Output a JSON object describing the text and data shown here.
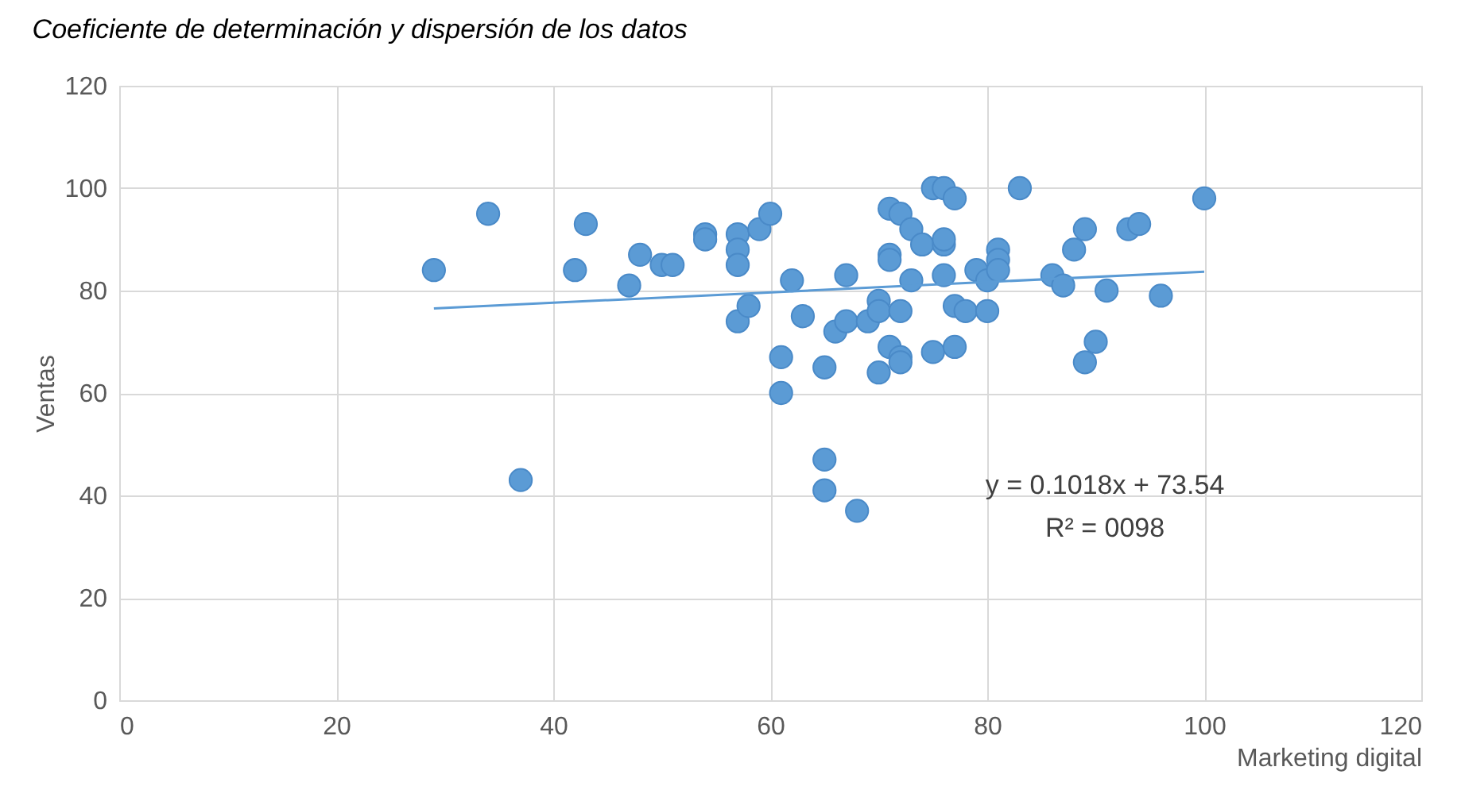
{
  "chart_data": {
    "type": "scatter",
    "title": "Coeficiente de determinación y dispersión de los datos",
    "xlabel": "Marketing digital",
    "ylabel": "Ventas",
    "xlim": [
      0,
      120
    ],
    "xticks": [
      0,
      20,
      40,
      60,
      80,
      100,
      120
    ],
    "ylim": [
      0,
      120
    ],
    "yticks": [
      0,
      20,
      40,
      60,
      80,
      100,
      120
    ],
    "grid": true,
    "annotations": [
      "y = 0.1018x + 73.54",
      "R² = 0098"
    ],
    "series": [
      {
        "marker": "circle",
        "color": "#5b9bd5",
        "x": [
          29,
          34,
          37,
          42,
          43,
          47,
          48,
          50,
          51,
          54,
          54,
          57,
          57,
          57,
          57,
          58,
          59,
          60,
          61,
          61,
          62,
          63,
          65,
          65,
          65,
          66,
          67,
          67,
          68,
          69,
          70,
          70,
          70,
          71,
          71,
          71,
          71,
          72,
          72,
          72,
          72,
          73,
          73,
          74,
          75,
          75,
          76,
          76,
          76,
          76,
          77,
          77,
          77,
          78,
          79,
          80,
          80,
          81,
          81,
          81,
          83,
          86,
          87,
          88,
          89,
          89,
          90,
          91,
          93,
          94,
          96,
          100
        ],
        "values": [
          84,
          95,
          43,
          84,
          93,
          81,
          87,
          85,
          85,
          91,
          90,
          91,
          88,
          85,
          74,
          77,
          92,
          95,
          67,
          60,
          82,
          75,
          47,
          41,
          65,
          72,
          74,
          83,
          37,
          74,
          78,
          76,
          64,
          96,
          87,
          86,
          69,
          95,
          76,
          67,
          66,
          92,
          82,
          89,
          100,
          68,
          100,
          89,
          90,
          83,
          98,
          77,
          69,
          76,
          84,
          82,
          76,
          88,
          86,
          84,
          100,
          83,
          81,
          88,
          92,
          66,
          70,
          80,
          92,
          93,
          79,
          98
        ]
      },
      {
        "type": "line",
        "color": "#5b9bd5",
        "x": [
          29,
          100
        ],
        "values": [
          76.5,
          83.7
        ]
      }
    ]
  }
}
